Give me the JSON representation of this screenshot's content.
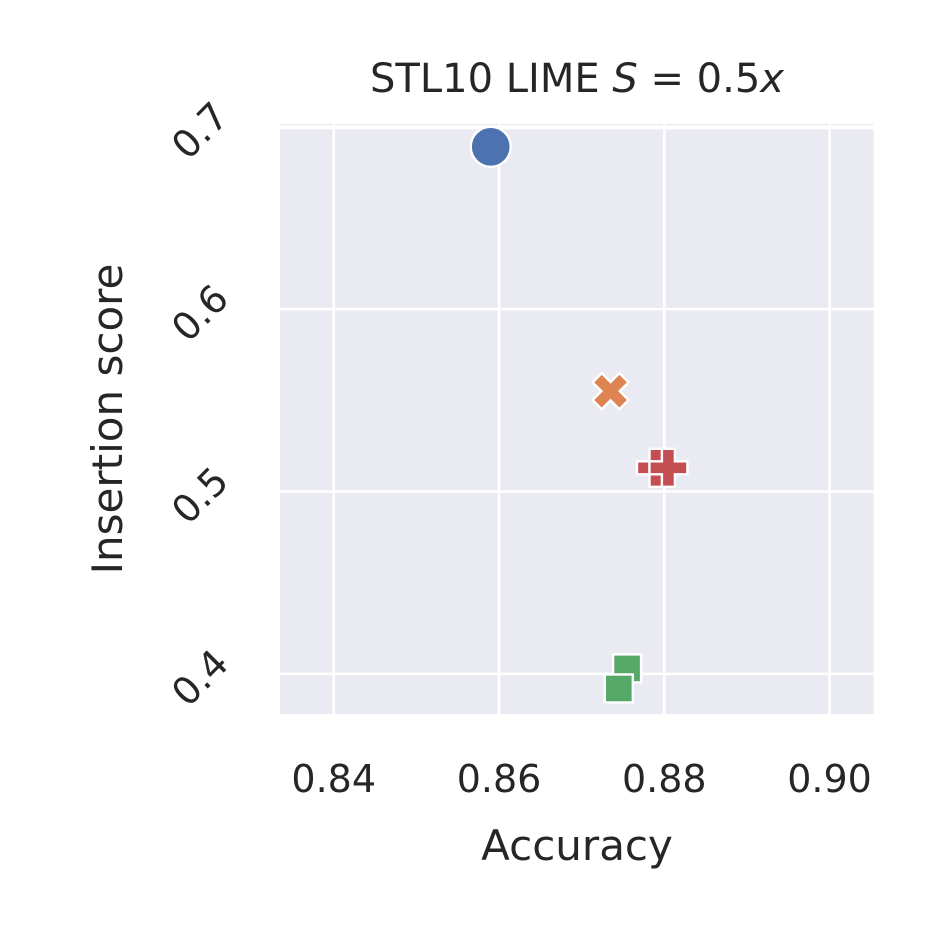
{
  "chart_data": {
    "type": "scatter",
    "title": {
      "prefix": "STL10 LIME ",
      "math_s": "S",
      "math_rest": " = 0.5",
      "math_x": "x"
    },
    "xlabel": "Accuracy",
    "ylabel": "Insertion score",
    "xlim": [
      0.8335,
      0.9055
    ],
    "ylim": [
      0.378,
      0.7015
    ],
    "xticks": [
      {
        "value": 0.84,
        "label": "0.84"
      },
      {
        "value": 0.86,
        "label": "0.86"
      },
      {
        "value": 0.88,
        "label": "0.88"
      },
      {
        "value": 0.9,
        "label": "0.90"
      }
    ],
    "yticks": [
      {
        "value": 0.4,
        "label": "0.4"
      },
      {
        "value": 0.5,
        "label": "0.5"
      },
      {
        "value": 0.6,
        "label": "0.6"
      },
      {
        "value": 0.7,
        "label": "0.7"
      }
    ],
    "grid": true,
    "background_color": "#eaeaf2",
    "points": [
      {
        "x": 0.859,
        "y": 0.689,
        "marker": "circle",
        "color": "#4c72b0"
      },
      {
        "x": 0.8735,
        "y": 0.555,
        "marker": "x",
        "color": "#dd8452"
      },
      {
        "x": 0.879,
        "y": 0.513,
        "marker": "plus",
        "color": "#c44e52"
      },
      {
        "x": 0.8805,
        "y": 0.513,
        "marker": "plus",
        "color": "#c44e52"
      },
      {
        "x": 0.8755,
        "y": 0.403,
        "marker": "square",
        "color": "#55a868"
      },
      {
        "x": 0.8745,
        "y": 0.392,
        "marker": "square",
        "color": "#55a868"
      }
    ]
  }
}
